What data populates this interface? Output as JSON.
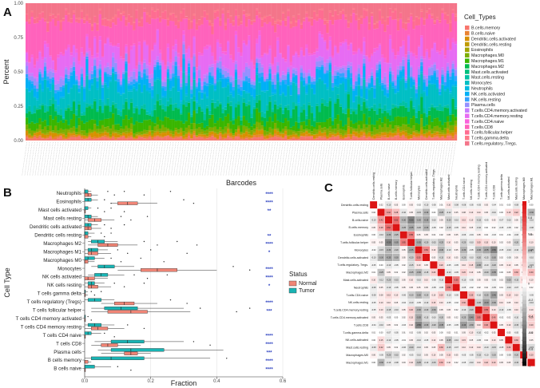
{
  "figure": {
    "panel_a_label": "A",
    "panel_b_label": "B",
    "panel_c_label": "C"
  },
  "chart_data": [
    {
      "type": "bar",
      "stacked": true,
      "panel": "A",
      "xlabel": "Barcodes",
      "ylabel": "Percent",
      "ylim": [
        0,
        1
      ],
      "yticks": [
        "0.00",
        "0.25",
        "0.50",
        "0.75",
        "1.00"
      ],
      "legend_title": "Cell_Types",
      "legend_position": "right",
      "sample_count": 165,
      "series": [
        {
          "name": "B.cells.memory",
          "color": "#f8766d",
          "mean_fraction": 0.02
        },
        {
          "name": "B.cells.naive",
          "color": "#ea8331",
          "mean_fraction": 0.01
        },
        {
          "name": "Dendritic.cells.activated",
          "color": "#d89000",
          "mean_fraction": 0.02
        },
        {
          "name": "Dendritic.cells.resting",
          "color": "#c09b00",
          "mean_fraction": 0.0
        },
        {
          "name": "Eosinophils",
          "color": "#a3a500",
          "mean_fraction": 0.01
        },
        {
          "name": "Macrophages.M0",
          "color": "#7cae00",
          "mean_fraction": 0.03
        },
        {
          "name": "Macrophages.M1",
          "color": "#39b600",
          "mean_fraction": 0.05
        },
        {
          "name": "Macrophages.M2",
          "color": "#00bb4e",
          "mean_fraction": 0.08
        },
        {
          "name": "Mast.cells.activated",
          "color": "#00bf7d",
          "mean_fraction": 0.0
        },
        {
          "name": "Mast.cells.resting",
          "color": "#00c1a3",
          "mean_fraction": 0.03
        },
        {
          "name": "Monocytes",
          "color": "#00bfc4",
          "mean_fraction": 0.12
        },
        {
          "name": "Neutrophils",
          "color": "#00bae0",
          "mean_fraction": 0.01
        },
        {
          "name": "NK.cells.activated",
          "color": "#00b0f6",
          "mean_fraction": 0.06
        },
        {
          "name": "NK.cells.resting",
          "color": "#35a2ff",
          "mean_fraction": 0.02
        },
        {
          "name": "Plasma.cells",
          "color": "#9590ff",
          "mean_fraction": 0.04
        },
        {
          "name": "T.cells.CD4.memory.activated",
          "color": "#c77cff",
          "mean_fraction": 0.02
        },
        {
          "name": "T.cells.CD4.memory.resting",
          "color": "#e76bf3",
          "mean_fraction": 0.12
        },
        {
          "name": "T.cells.CD4.naive",
          "color": "#fa62db",
          "mean_fraction": 0.02
        },
        {
          "name": "T.cells.CD8",
          "color": "#ff62bc",
          "mean_fraction": 0.2
        },
        {
          "name": "T.cells.follicular.helper",
          "color": "#ff6c91",
          "mean_fraction": 0.04
        },
        {
          "name": "T.cells.gamma.delta",
          "color": "#ff7a8a",
          "mean_fraction": 0.01
        },
        {
          "name": "T.cells.regulatory..Tregs.",
          "color": "#f4758a",
          "mean_fraction": 0.09
        }
      ]
    },
    {
      "type": "box",
      "panel": "B",
      "xlabel": "Fraction",
      "ylabel": "Cell Type",
      "xlim": [
        0,
        0.6
      ],
      "xticks": [
        "0.0",
        "0.2",
        "0.4",
        "0.6"
      ],
      "legend_title": "Status",
      "legend_position": "right",
      "groups": [
        {
          "name": "Normal",
          "color": "#f08576"
        },
        {
          "name": "Tumor",
          "color": "#19b4b4"
        }
      ],
      "categories": [
        "Neutrophils",
        "Eosinophils",
        "Mast cells activated",
        "Mast cells resting",
        "Dendritic cells activated",
        "Dendritic cells resting",
        "Macrophages M2",
        "Macrophages M1",
        "Macrophages M0",
        "Monocytes",
        "NK cells activated",
        "NK cells resting",
        "T cells gamma delta",
        "T cells regulatory (Tregs)",
        "T cells follicular helper",
        "T cells CD4 memory activated",
        "T cells CD4 memory resting",
        "T cells CD4 naive",
        "T cells CD8",
        "Plasma cells",
        "B cells memory",
        "B cells naive"
      ],
      "significance": [
        "****",
        "****",
        "**",
        "",
        "",
        "**",
        "****",
        "*",
        "",
        "****",
        "****",
        "*",
        "",
        "****",
        "***",
        "",
        "",
        "****",
        "****",
        "***",
        "****",
        "****"
      ],
      "normal_box": [
        [
          0,
          0,
          0.01,
          0.02,
          0.04
        ],
        [
          0.08,
          0.1,
          0.13,
          0.16,
          0.22
        ],
        [
          0,
          0,
          0,
          0,
          0
        ],
        [
          0,
          0.01,
          0.03,
          0.05,
          0.09
        ],
        [
          0,
          0,
          0.01,
          0.02,
          0.05
        ],
        [
          0,
          0,
          0,
          0.01,
          0.02
        ],
        [
          0.01,
          0.04,
          0.07,
          0.1,
          0.16
        ],
        [
          0,
          0.01,
          0.02,
          0.04,
          0.08
        ],
        [
          0,
          0,
          0,
          0.01,
          0.03
        ],
        [
          0.1,
          0.17,
          0.22,
          0.28,
          0.4
        ],
        [
          0,
          0,
          0.01,
          0.03,
          0.07
        ],
        [
          0,
          0.01,
          0.02,
          0.04,
          0.08
        ],
        [
          0,
          0,
          0,
          0,
          0.01
        ],
        [
          0.05,
          0.09,
          0.12,
          0.15,
          0.22
        ],
        [
          0.02,
          0.07,
          0.14,
          0.19,
          0.32
        ],
        [
          0,
          0,
          0,
          0,
          0
        ],
        [
          0,
          0.02,
          0.04,
          0.07,
          0.12
        ],
        [
          0,
          0,
          0,
          0,
          0
        ],
        [
          0.02,
          0.05,
          0.07,
          0.1,
          0.17
        ],
        [
          0.05,
          0.12,
          0.14,
          0.16,
          0.2
        ],
        [
          0,
          0,
          0,
          0.01,
          0.02
        ],
        [
          0,
          0,
          0,
          0,
          0
        ]
      ],
      "tumor_box": [
        [
          0,
          0,
          0,
          0.01,
          0.02
        ],
        [
          0,
          0,
          0.01,
          0.02,
          0.04
        ],
        [
          0,
          0,
          0,
          0.01,
          0.02
        ],
        [
          0,
          0,
          0.01,
          0.02,
          0.04
        ],
        [
          0,
          0,
          0.01,
          0.02,
          0.04
        ],
        [
          0,
          0,
          0,
          0.01,
          0.03
        ],
        [
          0.01,
          0.02,
          0.04,
          0.06,
          0.1
        ],
        [
          0,
          0.01,
          0.02,
          0.04,
          0.07
        ],
        [
          0,
          0,
          0.01,
          0.03,
          0.06
        ],
        [
          0.02,
          0.04,
          0.06,
          0.09,
          0.15
        ],
        [
          0.01,
          0.03,
          0.05,
          0.07,
          0.12
        ],
        [
          0,
          0.01,
          0.02,
          0.03,
          0.06
        ],
        [
          0,
          0,
          0,
          0,
          0.01
        ],
        [
          0,
          0.01,
          0.03,
          0.05,
          0.09
        ],
        [
          0.02,
          0.06,
          0.11,
          0.16,
          0.3
        ],
        [
          0,
          0,
          0,
          0,
          0
        ],
        [
          0,
          0.01,
          0.03,
          0.05,
          0.09
        ],
        [
          0,
          0,
          0.01,
          0.02,
          0.05
        ],
        [
          0.03,
          0.08,
          0.13,
          0.18,
          0.3
        ],
        [
          0.04,
          0.08,
          0.14,
          0.24,
          0.42
        ],
        [
          0,
          0.02,
          0.08,
          0.18,
          0.38
        ],
        [
          0,
          0,
          0,
          0.03,
          0.08
        ]
      ],
      "outliers": [
        [
          0.07,
          0.09,
          0.12,
          0.18,
          0.26
        ],
        [
          0.06,
          0.08,
          0.3,
          0.33
        ],
        [
          0.04,
          0.06,
          0.08,
          0.12
        ],
        [
          0.11,
          0.14,
          0.19
        ],
        [
          0.06,
          0.08,
          0.12
        ],
        [
          0.05,
          0.06,
          0.08
        ],
        [
          0.18,
          0.22,
          0.28,
          0.34
        ],
        [
          0.1,
          0.13,
          0.2,
          0.31
        ],
        [
          0.08,
          0.11,
          0.17,
          0.24
        ],
        [
          0.45,
          0.5
        ],
        [
          0.15,
          0.19,
          0.25
        ],
        [
          0.09,
          0.12,
          0.18
        ],
        [
          0.02,
          0.03,
          0.05
        ],
        [
          0.26,
          0.31
        ],
        [
          0.35,
          0.46,
          0.5
        ],
        [
          0.01,
          0.02
        ],
        [
          0.13,
          0.18
        ],
        [
          0.06,
          0.09
        ],
        [
          0.33,
          0.38
        ],
        [],
        [
          0.43
        ],
        [
          0.1,
          0.14
        ]
      ]
    },
    {
      "type": "heatmap",
      "panel": "C",
      "colorbar_ticks": [
        "1",
        "0.8",
        "0.6",
        "0.4",
        "0.2",
        "0",
        "-0.2",
        "-0.4",
        "-0.6",
        "-0.8",
        "-1"
      ],
      "labels": [
        "Dendritic.cells.resting",
        "Plasma.cells",
        "B.cells.naive",
        "B.cells.memory",
        "Eosinophils",
        "T.cells.follicular.helper",
        "Monocytes",
        "Dendritic.cells.activated",
        "T.cells.regulatory..Tregs.",
        "Macrophages.M2",
        "Mast.cells.activated",
        "Neutrophils",
        "T.cells.CD4.naive",
        "NK.cells.resting",
        "T.cells.CD4.memory.resting",
        "T.cells.CD4.memory.activated",
        "T.cells.CD8",
        "T.cells.gamma.delta",
        "NK.cells.activated",
        "Mast.cells.resting",
        "Macrophages.M0",
        "Macrophages.M1"
      ],
      "matrix": [
        [
          1,
          0.02,
          -0.1,
          0.05,
          0,
          0.05,
          -0.02,
          -0.1,
          -0.05,
          0.01,
          0.1,
          -0.08,
          -0.08,
          -0.05,
          -0.05,
          0.05,
          -0.04,
          0.01,
          0,
          -0.08,
          0.06,
          0
        ],
        [
          0.02,
          1,
          0.42,
          0.28,
          -0.1,
          0.05,
          -0.15,
          -0.3,
          0,
          -0.25,
          -0.12,
          0.05,
          0.08,
          0.1,
          0.1,
          0.05,
          -0.1,
          0,
          0.15,
          0.22,
          -0.05,
          -0.3
        ],
        [
          -0.1,
          0.42,
          1,
          0.62,
          -0.3,
          -0.5,
          -0.3,
          -0.35,
          -0.1,
          0.05,
          -0.2,
          -0.1,
          0.15,
          0.1,
          -0.15,
          -0.05,
          0.05,
          -0.07,
          -0.1,
          0.05,
          -0.2,
          -0.1
        ],
        [
          0.05,
          0.28,
          0.62,
          1,
          -0.25,
          -0.35,
          -0.2,
          -0.3,
          -0.05,
          0.02,
          -0.15,
          -0.05,
          0.1,
          0.05,
          -0.1,
          0,
          0.02,
          -0.05,
          -0.05,
          0.02,
          -0.15,
          -0.08
        ],
        [
          0,
          -0.1,
          -0.3,
          -0.25,
          1,
          0.55,
          0.05,
          0.05,
          0.02,
          0.02,
          0.05,
          0.05,
          -0.06,
          -0.04,
          0.05,
          0.02,
          -0.03,
          0.01,
          -0.01,
          -0.06,
          0.02,
          0.03
        ],
        [
          0.05,
          0.05,
          -0.5,
          -0.35,
          0.55,
          1,
          -0.35,
          -0.2,
          -0.15,
          -0.25,
          0.1,
          0.05,
          -0.2,
          -0.1,
          0.2,
          0.15,
          0.1,
          0.02,
          0.05,
          -0.2,
          -0.05,
          0.1
        ],
        [
          -0.02,
          -0.15,
          -0.3,
          -0.2,
          0.05,
          -0.35,
          1,
          0.5,
          0.1,
          -0.3,
          -0.1,
          0.05,
          -0.3,
          -0.05,
          -0.3,
          -0.35,
          -0.5,
          -0.05,
          -0.1,
          -0.1,
          -0.1,
          -0.25
        ],
        [
          -0.1,
          -0.3,
          -0.35,
          -0.3,
          0.05,
          -0.2,
          0.5,
          1,
          0.05,
          -0.15,
          0.1,
          0.05,
          -0.2,
          -0.1,
          -0.2,
          -0.15,
          -0.3,
          0.02,
          -0.05,
          0.05,
          0.05,
          -0.1
        ],
        [
          -0.05,
          0,
          -0.1,
          -0.05,
          0.02,
          -0.15,
          0.1,
          0.05,
          1,
          0.2,
          -0.05,
          -0.05,
          0.1,
          0.15,
          -0.3,
          -0.1,
          -0.2,
          0.05,
          0.1,
          0.05,
          0.1,
          -0.15
        ],
        [
          0.01,
          -0.25,
          0.05,
          0.02,
          0.02,
          -0.25,
          -0.3,
          -0.15,
          0.2,
          1,
          -0.1,
          -0.05,
          0.2,
          0.1,
          0.05,
          -0.2,
          -0.35,
          0,
          0.05,
          0.3,
          0.05,
          0.3
        ],
        [
          0.1,
          -0.12,
          -0.2,
          -0.15,
          0.05,
          0.1,
          -0.1,
          0.1,
          -0.05,
          -0.1,
          1,
          0.55,
          -0.1,
          -0.05,
          0.05,
          0.05,
          -0.05,
          0.02,
          -0.25,
          -0.15,
          0.15,
          0.1
        ],
        [
          -0.08,
          0.05,
          -0.1,
          -0.05,
          0.05,
          0.05,
          0.05,
          0.05,
          -0.05,
          -0.05,
          0.55,
          1,
          -0.05,
          -0.02,
          0.02,
          0.02,
          -0.05,
          0.01,
          -0.1,
          -0.07,
          0.05,
          0.02
        ],
        [
          -0.08,
          0.08,
          0.15,
          0.1,
          -0.06,
          -0.2,
          -0.3,
          -0.2,
          0.1,
          0.2,
          -0.1,
          -0.05,
          1,
          0.3,
          -0.1,
          -0.25,
          -0.4,
          0.05,
          0.15,
          0.1,
          -0.05,
          -0.05
        ],
        [
          -0.05,
          0.1,
          0.1,
          0.05,
          -0.04,
          -0.1,
          -0.05,
          -0.1,
          0.15,
          0.1,
          -0.05,
          -0.02,
          0.3,
          1,
          -0.2,
          -0.4,
          -0.3,
          0.1,
          0.05,
          0.1,
          -0.05,
          -0.1
        ],
        [
          -0.05,
          0.1,
          -0.15,
          -0.1,
          0.05,
          0.2,
          -0.3,
          -0.2,
          -0.3,
          0.05,
          0.05,
          0.02,
          -0.1,
          -0.2,
          1,
          0.55,
          0.1,
          -0.1,
          -0.05,
          0.1,
          -0.15,
          0.1
        ],
        [
          0.05,
          0.05,
          -0.05,
          0,
          0.02,
          0.15,
          -0.35,
          -0.15,
          -0.1,
          -0.2,
          0.05,
          0.02,
          -0.25,
          -0.4,
          0.55,
          1,
          0.4,
          -0.02,
          0.02,
          -0.1,
          -0.1,
          0.2
        ],
        [
          -0.04,
          -0.1,
          0.05,
          0.02,
          -0.03,
          0.1,
          -0.5,
          -0.3,
          -0.2,
          -0.35,
          -0.05,
          -0.05,
          -0.4,
          -0.3,
          0.1,
          0.4,
          1,
          0.05,
          0.1,
          -0.15,
          -0.2,
          0.2
        ],
        [
          0.01,
          0,
          -0.07,
          -0.05,
          0.01,
          0.02,
          -0.05,
          0.02,
          0.05,
          0,
          0.02,
          0.01,
          0.05,
          0.1,
          -0.1,
          -0.02,
          0.05,
          1,
          0.05,
          -0.05,
          0,
          0.05
        ],
        [
          0,
          0.15,
          -0.1,
          -0.05,
          -0.01,
          0.05,
          -0.1,
          -0.05,
          0.1,
          0.05,
          -0.25,
          -0.1,
          0.15,
          0.05,
          -0.05,
          0.02,
          0.1,
          0.05,
          1,
          0.3,
          -0.05,
          0.05
        ],
        [
          -0.08,
          0.22,
          0.05,
          0.02,
          -0.06,
          -0.2,
          -0.1,
          0.05,
          0.05,
          0.3,
          -0.15,
          -0.07,
          0.1,
          0.1,
          0.1,
          -0.1,
          -0.15,
          -0.05,
          0.3,
          1,
          -0.2,
          -0.15
        ],
        [
          0.06,
          -0.05,
          -0.2,
          -0.15,
          0.02,
          -0.05,
          -0.1,
          0.05,
          0.1,
          0.05,
          0.15,
          0.05,
          -0.05,
          -0.05,
          -0.15,
          -0.1,
          -0.2,
          0,
          -0.05,
          -0.2,
          1,
          0.2
        ],
        [
          0,
          -0.3,
          -0.1,
          -0.08,
          0.03,
          0.1,
          -0.25,
          -0.1,
          -0.15,
          0.3,
          0.1,
          0.02,
          -0.05,
          -0.1,
          0.1,
          0.2,
          0.2,
          0.05,
          0.05,
          -0.15,
          0.2,
          1
        ]
      ]
    }
  ]
}
